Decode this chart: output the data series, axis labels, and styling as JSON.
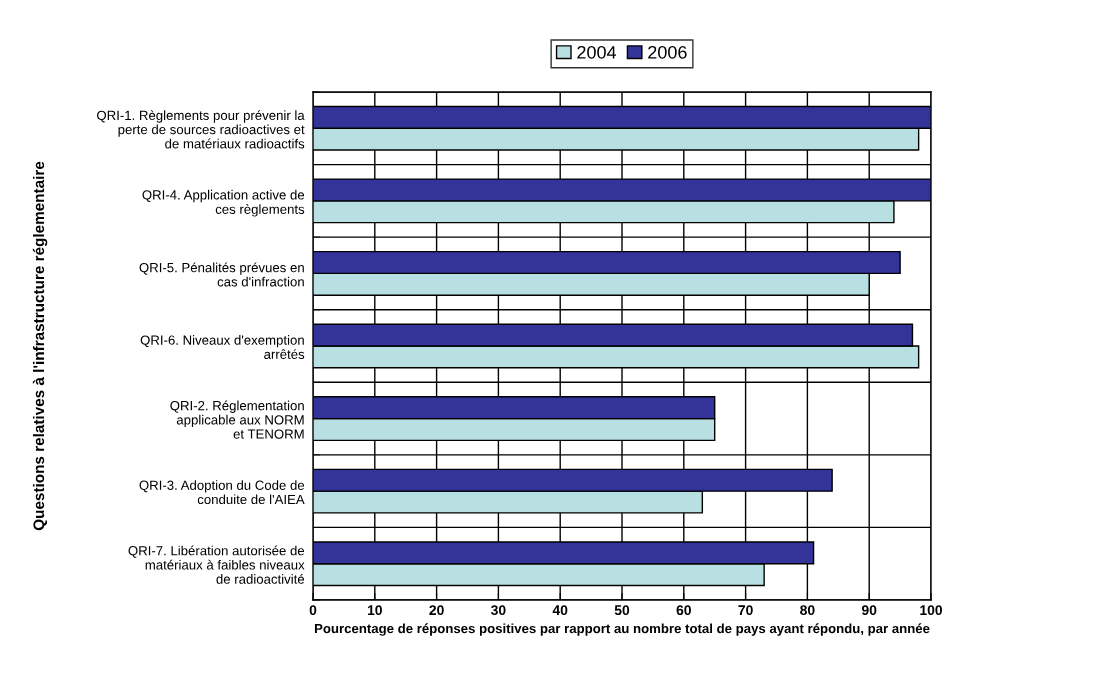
{
  "chart_data": {
    "type": "bar",
    "orientation": "horizontal",
    "ylabel": "Questions relatives à l'infrastructure réglementaire",
    "xlabel": "Pourcentage de réponses positives par rapport au nombre total de pays ayant répondu, par année",
    "categories": [
      "QRI-1. Règlements pour prévenir la\nperte de sources radioactives et\nde matériaux radioactifs",
      "QRI-4. Application active de\nces règlements",
      "QRI-5. Pénalités prévues en\ncas d'infraction",
      "QRI-6. Niveaux d'exemption\narrêtés",
      "QRI-2. Réglementation\napplicable aux NORM\net TENORM",
      "QRI-3. Adoption du Code de\nconduite de l'AIEA",
      "QRI-7. Libération autorisée de\nmatériaux à faibles niveaux\nde radioactivité"
    ],
    "series": [
      {
        "name": "2004",
        "color": "#b8e0e3",
        "values": [
          98,
          94,
          90,
          98,
          65,
          63,
          73
        ]
      },
      {
        "name": "2006",
        "color": "#333399",
        "values": [
          100,
          100,
          95,
          97,
          65,
          84,
          81
        ]
      }
    ],
    "xlim": [
      0,
      100
    ],
    "xticks": [
      0,
      10,
      20,
      30,
      40,
      50,
      60,
      70,
      80,
      90,
      100
    ],
    "grid": true,
    "legend": "top"
  }
}
